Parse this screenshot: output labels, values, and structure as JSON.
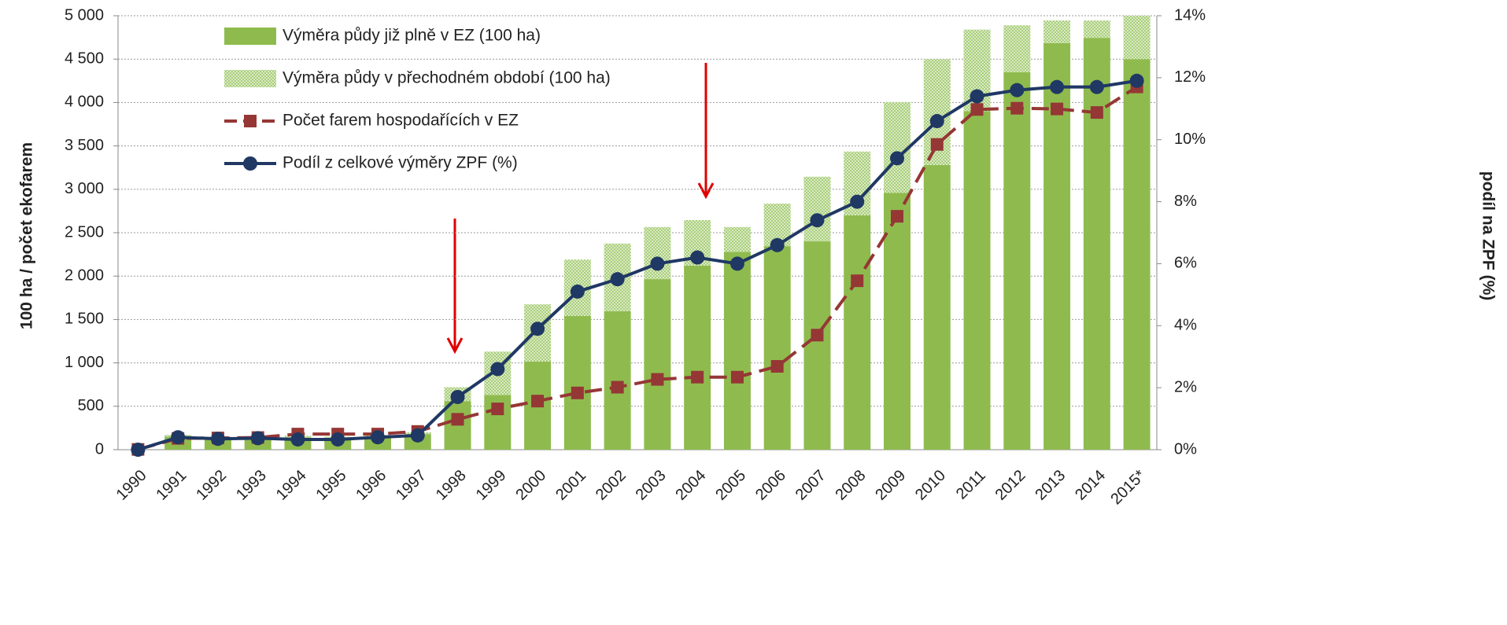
{
  "chart_data": {
    "type": "bar",
    "stacked": true,
    "y_label": "100 ha / počet ekofarem",
    "y2_label": "podíl na ZPF (%)",
    "categories": [
      "1990",
      "1991",
      "1992",
      "1993",
      "1994",
      "1995",
      "1996",
      "1997",
      "1998",
      "1999",
      "2000",
      "2001",
      "2002",
      "2003",
      "2004",
      "2005",
      "2006",
      "2007",
      "2008",
      "2009",
      "2010",
      "2011",
      "2012",
      "2013",
      "2014",
      "2015*"
    ],
    "series": [
      {
        "name": "Výměra půdy již plně v EZ (100 ha)",
        "type": "bar",
        "color": "#8fbb4e",
        "values": [
          0,
          150,
          130,
          130,
          140,
          130,
          150,
          180,
          560,
          630,
          1015,
          1540,
          1595,
          1965,
          2120,
          2280,
          2345,
          2400,
          2700,
          2960,
          3280,
          3900,
          4350,
          4685,
          4745,
          4500
        ]
      },
      {
        "name": "Výměra půdy v přechodném období (100 ha)",
        "type": "bar",
        "color": "#c6dea4",
        "pattern": true,
        "values": [
          0,
          20,
          20,
          20,
          20,
          20,
          20,
          20,
          160,
          500,
          660,
          650,
          780,
          600,
          525,
          285,
          490,
          745,
          735,
          1045,
          1220,
          940,
          540,
          260,
          200,
          500
        ]
      },
      {
        "name": "Počet farem hospodařících v EZ",
        "type": "line",
        "color": "#953735",
        "dashed": true,
        "marker": "square",
        "values": [
          3,
          130,
          135,
          140,
          180,
          180,
          180,
          210,
          350,
          470,
          560,
          654,
          720,
          810,
          836,
          836,
          960,
          1320,
          1946,
          2689,
          3517,
          3920,
          3934,
          3926,
          3885,
          4180
        ]
      },
      {
        "name": "Podíl z celkové výměry ZPF (%)",
        "type": "line",
        "color": "#1f3864",
        "marker": "circle",
        "axis": "y2",
        "values": [
          0,
          0.4,
          0.35,
          0.37,
          0.33,
          0.33,
          0.4,
          0.46,
          1.7,
          2.6,
          3.9,
          5.1,
          5.5,
          6.0,
          6.2,
          6.0,
          6.6,
          7.4,
          8.0,
          9.4,
          10.6,
          11.4,
          11.6,
          11.7,
          11.7,
          11.9
        ]
      }
    ],
    "ylim": [
      0,
      5000
    ],
    "yticks": [
      0,
      500,
      {
        "value": 1000,
        "label": "1 000"
      },
      {
        "value": 1500,
        "label": "1 500"
      },
      {
        "value": 2000,
        "label": "2 000"
      },
      {
        "value": 2500,
        "label": "2 500"
      },
      {
        "value": 3000,
        "label": "3 000"
      },
      {
        "value": 3500,
        "label": "3 500"
      },
      {
        "value": 4000,
        "label": "4 000"
      },
      {
        "value": 4500,
        "label": "4 500"
      },
      {
        "value": 5000,
        "label": "5 000"
      }
    ],
    "y2lim": [
      0,
      14
    ],
    "y2ticks": [
      {
        "value": 0,
        "label": "0%"
      },
      {
        "value": 2,
        "label": "2%"
      },
      {
        "value": 4,
        "label": "4%"
      },
      {
        "value": 6,
        "label": "6%"
      },
      {
        "value": 8,
        "label": "8%"
      },
      {
        "value": 10,
        "label": "10%"
      },
      {
        "value": 12,
        "label": "12%"
      },
      {
        "value": 14,
        "label": "14%"
      }
    ],
    "grid": true,
    "legend": "top-left"
  }
}
